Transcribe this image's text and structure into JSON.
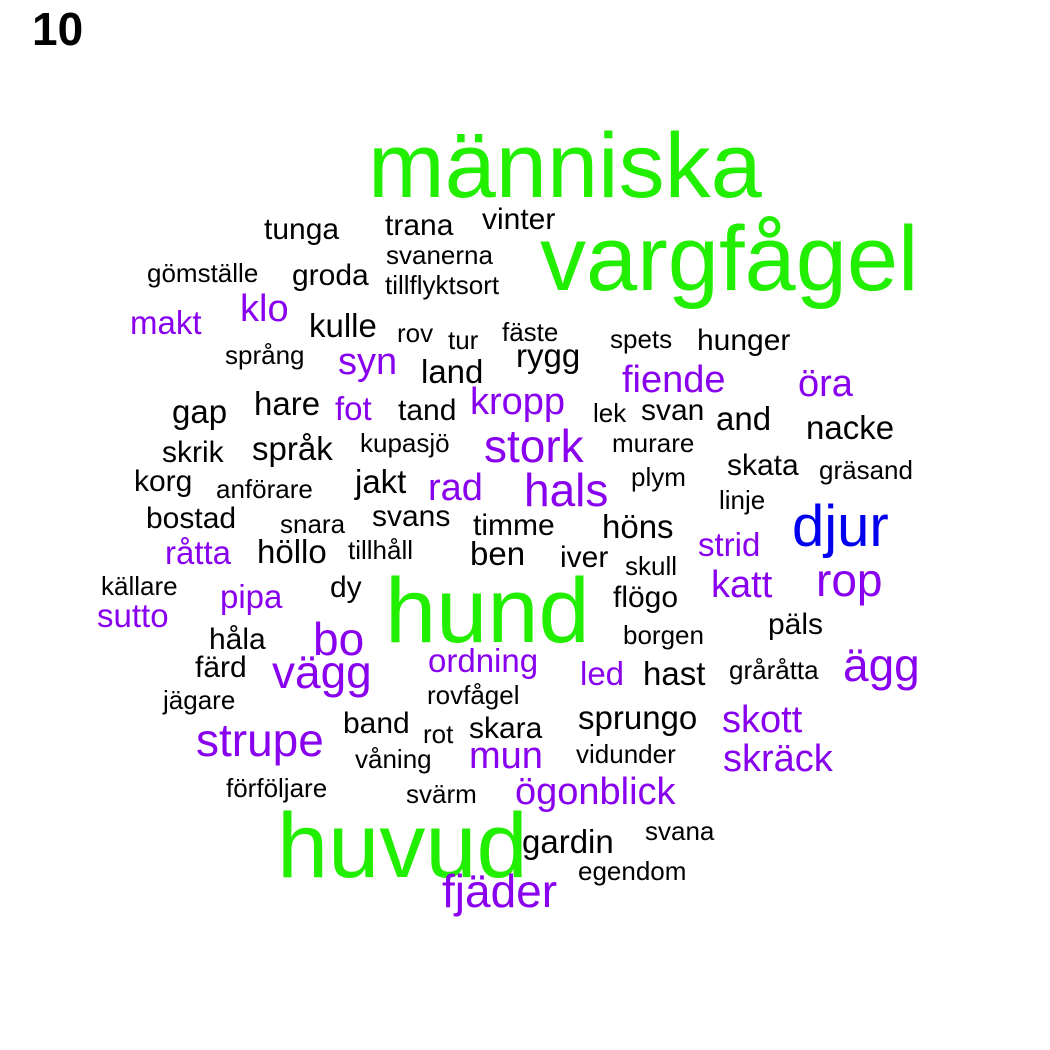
{
  "panel_number": "10",
  "colors": {
    "green": "#22ee00",
    "blue": "#0000ee",
    "purple": "#8800ee",
    "black": "#000000"
  },
  "words": [
    {
      "text": "människa",
      "color": "green",
      "size": 1
    },
    {
      "text": "vargfågel",
      "color": "green",
      "size": 1
    },
    {
      "text": "hund",
      "color": "green",
      "size": 1
    },
    {
      "text": "huvud",
      "color": "green",
      "size": 1
    },
    {
      "text": "djur",
      "color": "blue",
      "size": 2
    },
    {
      "text": "tunga",
      "color": "black",
      "size": 6
    },
    {
      "text": "trana",
      "color": "black",
      "size": 6
    },
    {
      "text": "vinter",
      "color": "black",
      "size": 6
    },
    {
      "text": "svanerna",
      "color": "black",
      "size": 7
    },
    {
      "text": "gömställe",
      "color": "black",
      "size": 7
    },
    {
      "text": "groda",
      "color": "black",
      "size": 6
    },
    {
      "text": "tillflyktsort",
      "color": "black",
      "size": 7
    },
    {
      "text": "klo",
      "color": "purple",
      "size": 4
    },
    {
      "text": "makt",
      "color": "purple",
      "size": 5
    },
    {
      "text": "kulle",
      "color": "black",
      "size": 5
    },
    {
      "text": "rov",
      "color": "black",
      "size": 7
    },
    {
      "text": "tur",
      "color": "black",
      "size": 7
    },
    {
      "text": "fäste",
      "color": "black",
      "size": 7
    },
    {
      "text": "spets",
      "color": "black",
      "size": 7
    },
    {
      "text": "hunger",
      "color": "black",
      "size": 6
    },
    {
      "text": "språng",
      "color": "black",
      "size": 7
    },
    {
      "text": "syn",
      "color": "purple",
      "size": 4
    },
    {
      "text": "land",
      "color": "black",
      "size": 5
    },
    {
      "text": "rygg",
      "color": "black",
      "size": 5
    },
    {
      "text": "fiende",
      "color": "purple",
      "size": 4
    },
    {
      "text": "öra",
      "color": "purple",
      "size": 4
    },
    {
      "text": "gap",
      "color": "black",
      "size": 5
    },
    {
      "text": "hare",
      "color": "black",
      "size": 5
    },
    {
      "text": "fot",
      "color": "purple",
      "size": 5
    },
    {
      "text": "tand",
      "color": "black",
      "size": 6
    },
    {
      "text": "kropp",
      "color": "purple",
      "size": 4
    },
    {
      "text": "lek",
      "color": "black",
      "size": 7
    },
    {
      "text": "svan",
      "color": "black",
      "size": 6
    },
    {
      "text": "and",
      "color": "black",
      "size": 5
    },
    {
      "text": "nacke",
      "color": "black",
      "size": 5
    },
    {
      "text": "skrik",
      "color": "black",
      "size": 6
    },
    {
      "text": "språk",
      "color": "black",
      "size": 5
    },
    {
      "text": "kupasjö",
      "color": "black",
      "size": 7
    },
    {
      "text": "stork",
      "color": "purple",
      "size": 3
    },
    {
      "text": "murare",
      "color": "black",
      "size": 7
    },
    {
      "text": "skata",
      "color": "black",
      "size": 6
    },
    {
      "text": "gräsand",
      "color": "black",
      "size": 7
    },
    {
      "text": "korg",
      "color": "black",
      "size": 6
    },
    {
      "text": "anförare",
      "color": "black",
      "size": 7
    },
    {
      "text": "jakt",
      "color": "black",
      "size": 5
    },
    {
      "text": "rad",
      "color": "purple",
      "size": 4
    },
    {
      "text": "hals",
      "color": "purple",
      "size": 3
    },
    {
      "text": "plym",
      "color": "black",
      "size": 7
    },
    {
      "text": "linje",
      "color": "black",
      "size": 7
    },
    {
      "text": "bostad",
      "color": "black",
      "size": 6
    },
    {
      "text": "snara",
      "color": "black",
      "size": 7
    },
    {
      "text": "svans",
      "color": "black",
      "size": 6
    },
    {
      "text": "timme",
      "color": "black",
      "size": 6
    },
    {
      "text": "höns",
      "color": "black",
      "size": 5
    },
    {
      "text": "råtta",
      "color": "purple",
      "size": 5
    },
    {
      "text": "höllo",
      "color": "black",
      "size": 5
    },
    {
      "text": "tillhåll",
      "color": "black",
      "size": 7
    },
    {
      "text": "ben",
      "color": "black",
      "size": 5
    },
    {
      "text": "iver",
      "color": "black",
      "size": 6
    },
    {
      "text": "skull",
      "color": "black",
      "size": 7
    },
    {
      "text": "strid",
      "color": "purple",
      "size": 5
    },
    {
      "text": "rop",
      "color": "purple",
      "size": 3
    },
    {
      "text": "källare",
      "color": "black",
      "size": 7
    },
    {
      "text": "pipa",
      "color": "purple",
      "size": 5
    },
    {
      "text": "dy",
      "color": "black",
      "size": 6
    },
    {
      "text": "katt",
      "color": "purple",
      "size": 4
    },
    {
      "text": "sutto",
      "color": "purple",
      "size": 5
    },
    {
      "text": "flögo",
      "color": "black",
      "size": 6
    },
    {
      "text": "bo",
      "color": "purple",
      "size": 3
    },
    {
      "text": "håla",
      "color": "black",
      "size": 6
    },
    {
      "text": "borgen",
      "color": "black",
      "size": 7
    },
    {
      "text": "päls",
      "color": "black",
      "size": 6
    },
    {
      "text": "ordning",
      "color": "purple",
      "size": 5
    },
    {
      "text": "färd",
      "color": "black",
      "size": 6
    },
    {
      "text": "vägg",
      "color": "purple",
      "size": 3
    },
    {
      "text": "led",
      "color": "purple",
      "size": 5
    },
    {
      "text": "hast",
      "color": "black",
      "size": 5
    },
    {
      "text": "gråråtta",
      "color": "black",
      "size": 7
    },
    {
      "text": "ägg",
      "color": "purple",
      "size": 3
    },
    {
      "text": "jägare",
      "color": "black",
      "size": 7
    },
    {
      "text": "rovfågel",
      "color": "black",
      "size": 7
    },
    {
      "text": "sprungo",
      "color": "black",
      "size": 5
    },
    {
      "text": "skott",
      "color": "purple",
      "size": 4
    },
    {
      "text": "strupe",
      "color": "purple",
      "size": 3
    },
    {
      "text": "band",
      "color": "black",
      "size": 6
    },
    {
      "text": "rot",
      "color": "black",
      "size": 7
    },
    {
      "text": "skara",
      "color": "black",
      "size": 6
    },
    {
      "text": "mun",
      "color": "purple",
      "size": 4
    },
    {
      "text": "våning",
      "color": "black",
      "size": 7
    },
    {
      "text": "vidunder",
      "color": "black",
      "size": 7
    },
    {
      "text": "skräck",
      "color": "purple",
      "size": 4
    },
    {
      "text": "förföljare",
      "color": "black",
      "size": 7
    },
    {
      "text": "svärm",
      "color": "black",
      "size": 7
    },
    {
      "text": "ögonblick",
      "color": "purple",
      "size": 4
    },
    {
      "text": "gardin",
      "color": "black",
      "size": 5
    },
    {
      "text": "svana",
      "color": "black",
      "size": 7
    },
    {
      "text": "fjäder",
      "color": "purple",
      "size": 3
    },
    {
      "text": "egendom",
      "color": "black",
      "size": 7
    }
  ]
}
